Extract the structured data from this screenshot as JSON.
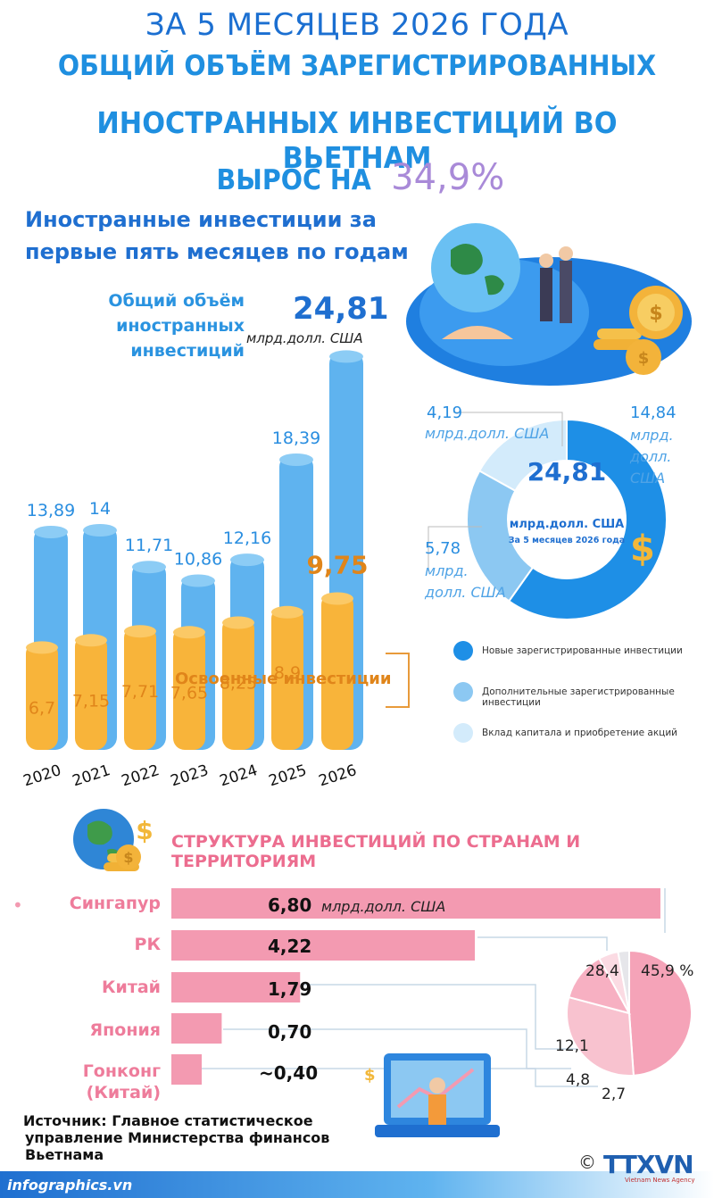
{
  "header": {
    "line1": "ЗА 5 МЕСЯЦЕВ 2026 ГОДА",
    "line2": "ОБЩИЙ ОБЪЁМ ЗАРЕГИСТРИРОВАННЫХ",
    "line3": "ИНОСТРАННЫХ ИНВЕСТИЦИЙ ВО ВЬЕТНАМ",
    "line4_prefix": "ВЫРОС НА",
    "line4_value": "34,9%"
  },
  "section1": {
    "title_line1": "Иностранные инвестиции за",
    "title_line2": "первые пять месяцев по годам",
    "total_label_1": "Общий объём",
    "total_label_2": "иностранных",
    "total_label_3": "инвестиций",
    "total_value": "24,81",
    "total_unit": "млрд.долл. США",
    "disbursed_label": "Освоенные инвестиции"
  },
  "donut": {
    "center_value": "24,81",
    "center_unit": "млрд.долл. США",
    "center_note": "За 5 месяцев 2026 года",
    "label_new": "14,84",
    "label_new_unit_1": "млрд.",
    "label_new_unit_2": "долл.",
    "label_new_unit_3": "США",
    "label_add": "5,78",
    "label_add_unit_1": "млрд.",
    "label_add_unit_2": "долл. США",
    "label_cap": "4,19",
    "label_cap_unit": "млрд.долл. США"
  },
  "legend": {
    "item1": "Новые зарегистрированные инвестиции",
    "item2": "Дополнительные зарегистрированные инвестиции",
    "item3": "Вклад капитала и приобретение акций"
  },
  "section2": {
    "title": "СТРУКТУРА ИНВЕСТИЦИЙ ПО СТРАНАМ И ТЕРРИТОРИЯМ",
    "unit": "млрд.долл. США"
  },
  "countries": [
    {
      "name": "Сингапур",
      "value_label": "6,80"
    },
    {
      "name": "РК",
      "value_label": "4,22"
    },
    {
      "name": "Китай",
      "value_label": "1,79"
    },
    {
      "name": "Япония",
      "value_label": "0,70"
    },
    {
      "name": "Гонконг (Китай)",
      "name_1": "Гонконг",
      "name_2": "(Китай)",
      "value_label": "~0,40"
    }
  ],
  "pie_labels": {
    "p1": "45,9 %",
    "p2": "28,4",
    "p3": "12,1",
    "p4": "4,8",
    "p5": "2,7"
  },
  "source": {
    "line1": "Источник: Главное статистическое",
    "line2": "управление Министерства финансов",
    "line3": "Вьетнама"
  },
  "footer": {
    "site": "infographics.vn",
    "copyright": "©",
    "logo": "TTXVN",
    "agency": "Vietnam News Agency"
  },
  "colors": {
    "blue_bar": "#5fb3ef",
    "orange_bar": "#f8b43a",
    "pink": "#f39ab1",
    "donut_new": "#1e8fe6",
    "donut_add": "#8cc8f2",
    "donut_cap": "#d3ebfb"
  },
  "chart_data": [
    {
      "type": "bar",
      "categories": [
        "2020",
        "2021",
        "2022",
        "2023",
        "2024",
        "2025",
        "2026"
      ],
      "series": [
        {
          "name": "Общий объём иностранных инвестиций",
          "values": [
            13.89,
            14,
            11.71,
            10.86,
            12.16,
            18.39,
            24.81
          ],
          "labels": [
            "13,89",
            "14",
            "11,71",
            "10,86",
            "12,16",
            "18,39",
            "24,81"
          ]
        },
        {
          "name": "Освоенные инвестиции",
          "values": [
            6.7,
            7.15,
            7.71,
            7.65,
            8.25,
            8.9,
            9.75
          ],
          "labels": [
            "6,7",
            "7,15",
            "7,71",
            "7,65",
            "8,25",
            "8,9",
            "9,75"
          ]
        }
      ],
      "ylim": [
        0,
        26
      ]
    },
    {
      "type": "pie",
      "categories": [
        "Новые зарегистрированные инвестиции",
        "Дополнительные зарегистрированные инвестиции",
        "Вклад капитала и приобретение акций"
      ],
      "values": [
        14.84,
        5.78,
        4.19
      ]
    },
    {
      "type": "bar",
      "categories": [
        "Сингапур",
        "РК",
        "Китай",
        "Япония",
        "Гонконг (Китай)"
      ],
      "values": [
        6.8,
        4.22,
        1.79,
        0.7,
        0.4
      ],
      "xlim": [
        0,
        6.9
      ]
    },
    {
      "type": "pie",
      "values": [
        45.9,
        28.4,
        12.1,
        4.8,
        2.7
      ]
    }
  ]
}
